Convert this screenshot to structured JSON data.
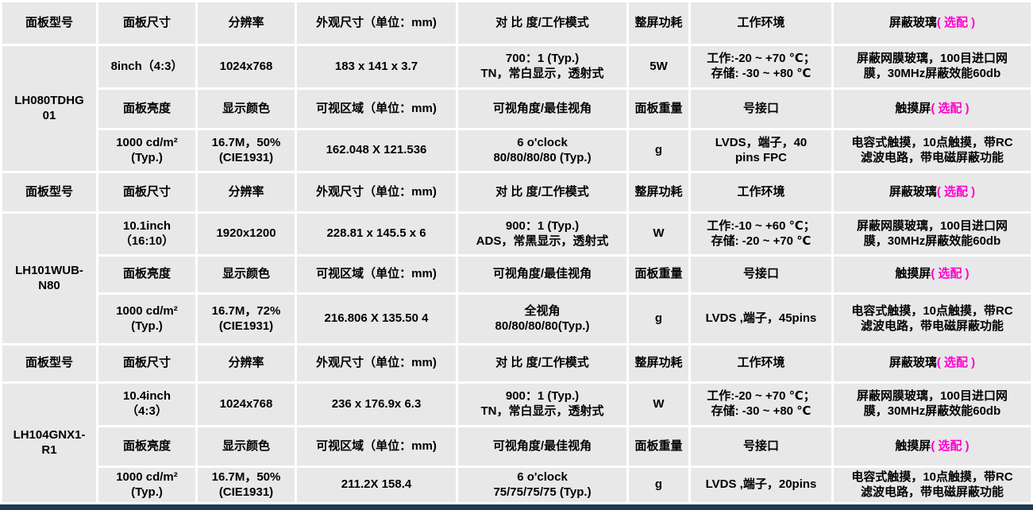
{
  "colors": {
    "cell_background": "#e8e8e8",
    "grid_lines": "#ffffff",
    "text": "#000000",
    "optional_accent": "#ff00cc",
    "bottom_strip": "#1f3a50"
  },
  "header_row": [
    {
      "text": "面板型号"
    },
    {
      "text": "面板尺寸"
    },
    {
      "text": "分辨率"
    },
    {
      "text": "外观尺寸（单位：mm)"
    },
    {
      "text": "对 比 度/工作模式"
    },
    {
      "text": "整屏功耗"
    },
    {
      "text": "工作环境"
    },
    {
      "text": "屏蔽玻璃",
      "accent": "( 选配 )"
    }
  ],
  "subheader_row": [
    {
      "text": "面板亮度"
    },
    {
      "text": "显示颜色"
    },
    {
      "text": "可视区域（单位：mm)"
    },
    {
      "text": "可视角度/最佳视角"
    },
    {
      "text": "面板重量"
    },
    {
      "text": "号接口"
    },
    {
      "text": "触摸屏",
      "accent": "( 选配 )"
    }
  ],
  "blocks": [
    {
      "model": "LH080TDHG01",
      "row_b": [
        "8inch（4:3）",
        "1024x768",
        "183 x 141  x 3.7",
        "700：1 (Typ.)\nTN，常白显示，透射式",
        "5W",
        "工作:-20 ~ +70 ℃；\n存储: -30 ~ +80 ℃",
        "屏蔽网膜玻璃，100目进口网\n膜，30MHz屏蔽效能60db"
      ],
      "row_d": [
        "1000 cd/m²\n(Typ.)",
        "16.7M，50%\n(CIE1931)",
        "162.048  X 121.536",
        "6 o'clock\n80/80/80/80 (Typ.)",
        "g",
        "LVDS，端子，40\npins FPC",
        "电容式触摸，10点触摸，带RC\n滤波电路，带电磁屏蔽功能"
      ]
    },
    {
      "model": "LH101WUB-N80",
      "row_b": [
        "10.1inch\n（16:10）",
        "1920x1200",
        "228.81  x 145.5 x 6",
        "900：1 (Typ.)\nADS，常黑显示，透射式",
        "W",
        "工作:-10 ~ +60 ℃；\n存储: -20 ~ +70 ℃",
        "屏蔽网膜玻璃，100目进口网\n膜，30MHz屏蔽效能60db"
      ],
      "row_d": [
        "1000 cd/m²\n(Typ.)",
        "16.7M，72%\n(CIE1931)",
        "216.806 X 135.50 4",
        "全视角\n80/80/80/80(Typ.)",
        "g",
        "LVDS ,端子，45pins",
        "电容式触摸，10点触摸，带RC\n滤波电路，带电磁屏蔽功能"
      ]
    },
    {
      "model": "LH104GNX1-R1",
      "row_b": [
        "10.4inch\n（4:3）",
        "1024x768",
        "236 x 176.9x 6.3",
        "900：1 (Typ.)\nTN，常白显示，透射式",
        "W",
        "工作:-20 ~ +70 ℃；\n存储: -30 ~ +80 ℃",
        "屏蔽网膜玻璃，100目进口网\n膜，30MHz屏蔽效能60db"
      ],
      "row_d": [
        "1000 cd/m²\n(Typ.)",
        "16.7M，50%\n(CIE1931)",
        "211.2X 158.4",
        "6 o'clock\n75/75/75/75 (Typ.)",
        "g",
        "LVDS ,端子，20pins",
        "电容式触摸，10点触摸，带RC\n滤波电路，带电磁屏蔽功能"
      ]
    }
  ]
}
